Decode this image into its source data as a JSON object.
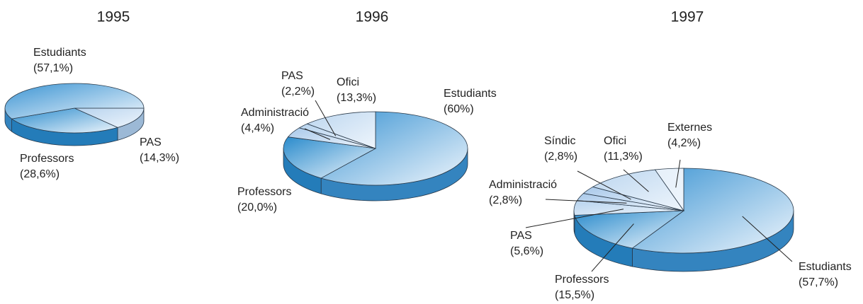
{
  "chart_data": [
    {
      "type": "pie",
      "title": "1995",
      "categories": [
        "PAS",
        "Professors",
        "Estudiants"
      ],
      "values": [
        14.3,
        28.6,
        57.1
      ],
      "value_labels": [
        "(14,3%)",
        "(28,6%)",
        "(57,1%)"
      ],
      "colors": [
        "#b7d3ee",
        "#2a8bcc",
        "#3d95d3"
      ]
    },
    {
      "type": "pie",
      "title": "1996",
      "categories": [
        "Estudiants",
        "Professors",
        "Administració",
        "PAS",
        "Ofici"
      ],
      "values": [
        60,
        20.0,
        4.4,
        2.2,
        13.3
      ],
      "value_labels": [
        "(60%)",
        "(20,0%)",
        "(4,4%)",
        "(2,2%)",
        "(13,3%)"
      ],
      "colors": [
        "#3d95d3",
        "#2a8bcc",
        "#a9c9ea",
        "#b7d3ee",
        "#bcd6ef"
      ]
    },
    {
      "type": "pie",
      "title": "1997",
      "categories": [
        "Estudiants",
        "Professors",
        "PAS",
        "Administració",
        "Síndic",
        "Ofici",
        "Externes"
      ],
      "values": [
        57.7,
        15.5,
        5.6,
        2.8,
        2.8,
        11.3,
        4.2
      ],
      "value_labels": [
        "(57,7%)",
        "(15,5%)",
        "(5,6%)",
        "(2,8%)",
        "(2,8%)",
        "(11,3%)",
        "(4,2%)"
      ],
      "colors": [
        "#3d95d3",
        "#2a8bcc",
        "#b7d3ee",
        "#a9c9ea",
        "#a9c9ea",
        "#bcd6ef",
        "#e6f0fa"
      ]
    }
  ]
}
